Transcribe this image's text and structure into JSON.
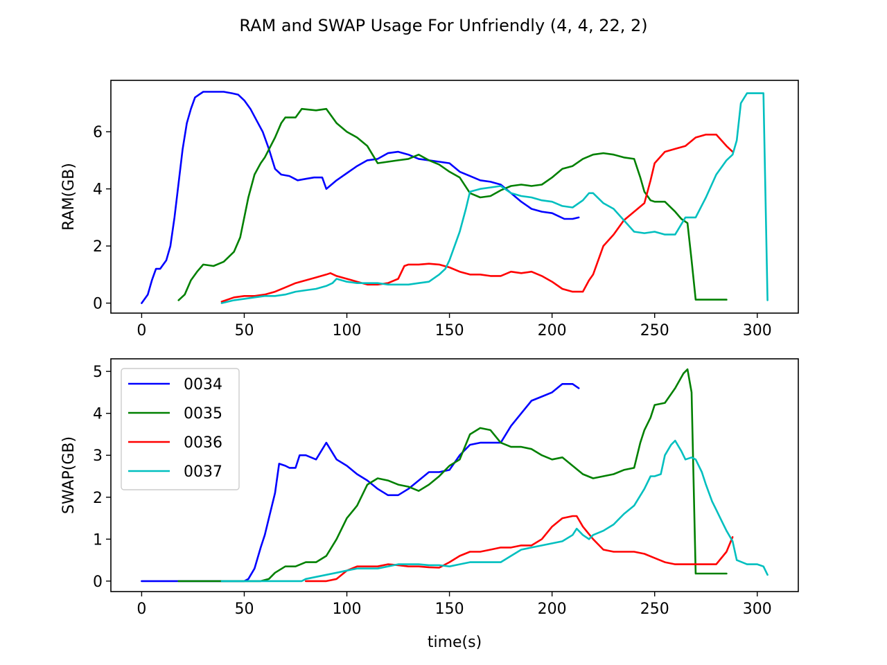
{
  "figure": {
    "title": "RAM and SWAP Usage For Unfriendly (4, 4, 22, 2)"
  },
  "chart_data": [
    {
      "type": "line",
      "ylabel": "RAM(GB)",
      "xlabel": "",
      "xlim": [
        -15,
        320
      ],
      "ylim": [
        -0.35,
        7.8
      ],
      "xticks": [
        0,
        50,
        100,
        150,
        200,
        250,
        300
      ],
      "yticks": [
        0,
        2,
        4,
        6
      ],
      "grid": false,
      "series": [
        {
          "name": "0034",
          "color": "#0000ff",
          "x": [
            0,
            3,
            5,
            7,
            9,
            12,
            14,
            16,
            18,
            20,
            22,
            24,
            26,
            28,
            30,
            35,
            40,
            44,
            47,
            50,
            53,
            56,
            59,
            62,
            65,
            68,
            72,
            76,
            80,
            84,
            88,
            90,
            95,
            100,
            105,
            110,
            115,
            120,
            125,
            130,
            135,
            140,
            145,
            150,
            155,
            160,
            165,
            170,
            175,
            180,
            185,
            190,
            195,
            200,
            203,
            206,
            210,
            213
          ],
          "y": [
            0.0,
            0.3,
            0.8,
            1.2,
            1.2,
            1.5,
            2.0,
            3.0,
            4.2,
            5.4,
            6.3,
            6.8,
            7.2,
            7.3,
            7.4,
            7.4,
            7.4,
            7.35,
            7.3,
            7.1,
            6.8,
            6.4,
            6.0,
            5.4,
            4.7,
            4.5,
            4.45,
            4.3,
            4.35,
            4.4,
            4.4,
            4.0,
            4.3,
            4.55,
            4.8,
            5.0,
            5.05,
            5.25,
            5.3,
            5.2,
            5.05,
            5.0,
            4.95,
            4.9,
            4.6,
            4.45,
            4.3,
            4.25,
            4.15,
            3.85,
            3.55,
            3.3,
            3.2,
            3.15,
            3.05,
            2.95,
            2.95,
            3.0
          ]
        },
        {
          "name": "0035",
          "color": "#008000",
          "x": [
            18,
            21,
            24,
            27,
            30,
            35,
            40,
            45,
            48,
            50,
            52,
            55,
            58,
            60,
            65,
            68,
            70,
            75,
            78,
            85,
            90,
            95,
            100,
            105,
            110,
            115,
            120,
            125,
            130,
            135,
            140,
            145,
            150,
            155,
            160,
            165,
            170,
            175,
            180,
            185,
            190,
            195,
            200,
            205,
            210,
            215,
            220,
            225,
            230,
            235,
            240,
            243,
            245,
            248,
            250,
            255,
            260,
            263,
            266,
            268,
            270,
            275,
            280,
            285
          ],
          "y": [
            0.1,
            0.3,
            0.8,
            1.1,
            1.35,
            1.3,
            1.45,
            1.8,
            2.3,
            3.0,
            3.7,
            4.5,
            4.9,
            5.1,
            5.8,
            6.3,
            6.5,
            6.5,
            6.8,
            6.75,
            6.8,
            6.3,
            6.0,
            5.8,
            5.5,
            4.9,
            4.95,
            5.0,
            5.05,
            5.2,
            5.0,
            4.85,
            4.6,
            4.4,
            3.85,
            3.7,
            3.75,
            3.95,
            4.1,
            4.15,
            4.1,
            4.15,
            4.4,
            4.7,
            4.8,
            5.05,
            5.2,
            5.25,
            5.2,
            5.1,
            5.05,
            4.4,
            3.9,
            3.6,
            3.55,
            3.55,
            3.2,
            2.95,
            2.8,
            1.5,
            0.12,
            0.12,
            0.12,
            0.12
          ]
        },
        {
          "name": "0036",
          "color": "#ff0000",
          "x": [
            39,
            45,
            50,
            55,
            60,
            65,
            70,
            75,
            80,
            85,
            90,
            92,
            95,
            100,
            105,
            110,
            115,
            120,
            125,
            128,
            130,
            135,
            140,
            145,
            150,
            155,
            160,
            165,
            170,
            175,
            180,
            185,
            190,
            195,
            200,
            205,
            210,
            215,
            218,
            220,
            225,
            230,
            235,
            240,
            245,
            248,
            250,
            255,
            260,
            265,
            270,
            275,
            280,
            285,
            288
          ],
          "y": [
            0.05,
            0.2,
            0.25,
            0.25,
            0.3,
            0.4,
            0.55,
            0.7,
            0.8,
            0.9,
            1.0,
            1.05,
            0.95,
            0.85,
            0.75,
            0.65,
            0.65,
            0.7,
            0.85,
            1.3,
            1.35,
            1.35,
            1.38,
            1.35,
            1.25,
            1.1,
            1.0,
            1.0,
            0.95,
            0.95,
            1.1,
            1.05,
            1.1,
            0.95,
            0.75,
            0.5,
            0.4,
            0.4,
            0.8,
            1.0,
            2.0,
            2.4,
            2.9,
            3.2,
            3.5,
            4.3,
            4.9,
            5.3,
            5.4,
            5.5,
            5.8,
            5.9,
            5.9,
            5.5,
            5.3
          ]
        },
        {
          "name": "0037",
          "color": "#00bfbf",
          "x": [
            39,
            45,
            50,
            55,
            60,
            65,
            70,
            75,
            80,
            85,
            90,
            93,
            95,
            100,
            105,
            110,
            115,
            120,
            125,
            130,
            135,
            140,
            145,
            148,
            150,
            155,
            158,
            160,
            165,
            170,
            175,
            180,
            185,
            190,
            195,
            200,
            205,
            210,
            215,
            218,
            220,
            225,
            230,
            235,
            240,
            245,
            250,
            255,
            260,
            265,
            270,
            275,
            280,
            285,
            288,
            290,
            292,
            295,
            300,
            303,
            305
          ],
          "y": [
            0.0,
            0.1,
            0.15,
            0.2,
            0.25,
            0.25,
            0.3,
            0.4,
            0.45,
            0.5,
            0.6,
            0.7,
            0.85,
            0.75,
            0.7,
            0.7,
            0.7,
            0.65,
            0.65,
            0.65,
            0.7,
            0.75,
            1.0,
            1.2,
            1.5,
            2.5,
            3.3,
            3.9,
            4.0,
            4.05,
            4.1,
            3.85,
            3.75,
            3.7,
            3.6,
            3.55,
            3.4,
            3.35,
            3.6,
            3.85,
            3.85,
            3.5,
            3.3,
            2.9,
            2.5,
            2.45,
            2.5,
            2.4,
            2.4,
            3.0,
            3.0,
            3.7,
            4.5,
            5.0,
            5.2,
            5.7,
            7.0,
            7.35,
            7.35,
            7.35,
            0.1
          ]
        }
      ]
    },
    {
      "type": "line",
      "ylabel": "SWAP(GB)",
      "xlabel": "time(s)",
      "xlim": [
        -15,
        320
      ],
      "ylim": [
        -0.25,
        5.3
      ],
      "xticks": [
        0,
        50,
        100,
        150,
        200,
        250,
        300
      ],
      "yticks": [
        0,
        1,
        2,
        3,
        4,
        5
      ],
      "grid": false,
      "legend": "upper-left",
      "series": [
        {
          "name": "0034",
          "color": "#0000ff",
          "x": [
            0,
            10,
            20,
            30,
            40,
            50,
            52,
            55,
            58,
            60,
            62,
            65,
            67,
            70,
            72,
            75,
            77,
            80,
            85,
            90,
            95,
            100,
            105,
            110,
            115,
            120,
            125,
            130,
            135,
            140,
            145,
            150,
            155,
            160,
            165,
            170,
            175,
            180,
            185,
            190,
            195,
            200,
            205,
            210,
            213
          ],
          "y": [
            0,
            0,
            0,
            0,
            0,
            0,
            0.05,
            0.3,
            0.8,
            1.1,
            1.5,
            2.1,
            2.8,
            2.75,
            2.7,
            2.7,
            3.0,
            3.0,
            2.9,
            3.3,
            2.9,
            2.75,
            2.55,
            2.4,
            2.2,
            2.05,
            2.05,
            2.2,
            2.4,
            2.6,
            2.6,
            2.65,
            3.0,
            3.25,
            3.3,
            3.3,
            3.3,
            3.7,
            4.0,
            4.3,
            4.4,
            4.5,
            4.7,
            4.7,
            4.6
          ]
        },
        {
          "name": "0035",
          "color": "#008000",
          "x": [
            18,
            30,
            40,
            50,
            55,
            58,
            62,
            65,
            70,
            75,
            80,
            85,
            90,
            95,
            100,
            105,
            110,
            115,
            120,
            125,
            130,
            135,
            140,
            145,
            150,
            155,
            160,
            165,
            170,
            175,
            180,
            185,
            190,
            195,
            200,
            205,
            210,
            215,
            220,
            225,
            230,
            235,
            240,
            243,
            245,
            248,
            250,
            255,
            260,
            264,
            266,
            268,
            270,
            275,
            280,
            285
          ],
          "y": [
            0,
            0,
            0,
            0,
            0,
            0,
            0.05,
            0.2,
            0.35,
            0.35,
            0.45,
            0.45,
            0.6,
            1.0,
            1.5,
            1.8,
            2.3,
            2.45,
            2.4,
            2.3,
            2.25,
            2.15,
            2.3,
            2.5,
            2.75,
            2.9,
            3.5,
            3.65,
            3.6,
            3.3,
            3.2,
            3.2,
            3.15,
            3.0,
            2.9,
            2.95,
            2.75,
            2.55,
            2.45,
            2.5,
            2.55,
            2.65,
            2.7,
            3.3,
            3.6,
            3.9,
            4.2,
            4.25,
            4.6,
            4.95,
            5.05,
            4.5,
            0.18,
            0.18,
            0.18,
            0.18
          ]
        },
        {
          "name": "0036",
          "color": "#ff0000",
          "x": [
            80,
            90,
            95,
            100,
            105,
            110,
            115,
            120,
            125,
            130,
            135,
            140,
            145,
            150,
            155,
            160,
            165,
            170,
            175,
            180,
            185,
            190,
            195,
            200,
            205,
            210,
            212,
            215,
            220,
            225,
            230,
            235,
            240,
            245,
            250,
            255,
            260,
            265,
            270,
            275,
            280,
            285,
            288
          ],
          "y": [
            0,
            0,
            0.05,
            0.25,
            0.35,
            0.35,
            0.35,
            0.4,
            0.38,
            0.35,
            0.35,
            0.33,
            0.32,
            0.45,
            0.6,
            0.7,
            0.7,
            0.75,
            0.8,
            0.8,
            0.85,
            0.85,
            1.0,
            1.3,
            1.5,
            1.55,
            1.55,
            1.3,
            1.0,
            0.75,
            0.7,
            0.7,
            0.7,
            0.65,
            0.55,
            0.45,
            0.4,
            0.4,
            0.4,
            0.4,
            0.4,
            0.7,
            1.05
          ]
        },
        {
          "name": "0037",
          "color": "#00bfbf",
          "x": [
            39,
            50,
            60,
            70,
            78,
            80,
            85,
            90,
            95,
            100,
            105,
            110,
            115,
            120,
            125,
            130,
            135,
            140,
            145,
            150,
            155,
            160,
            165,
            170,
            175,
            180,
            185,
            190,
            195,
            200,
            205,
            210,
            212,
            215,
            218,
            220,
            225,
            230,
            235,
            240,
            245,
            248,
            250,
            253,
            255,
            258,
            260,
            263,
            265,
            268,
            270,
            273,
            275,
            278,
            280,
            283,
            285,
            288,
            290,
            295,
            300,
            303,
            305
          ],
          "y": [
            0,
            0,
            0,
            0,
            0,
            0.05,
            0.1,
            0.15,
            0.2,
            0.25,
            0.3,
            0.3,
            0.3,
            0.35,
            0.4,
            0.4,
            0.4,
            0.38,
            0.38,
            0.35,
            0.4,
            0.45,
            0.45,
            0.45,
            0.45,
            0.6,
            0.75,
            0.8,
            0.85,
            0.9,
            0.95,
            1.1,
            1.25,
            1.1,
            1.0,
            1.1,
            1.2,
            1.35,
            1.6,
            1.8,
            2.2,
            2.5,
            2.5,
            2.55,
            3.0,
            3.25,
            3.35,
            3.1,
            2.9,
            2.95,
            2.9,
            2.6,
            2.3,
            1.9,
            1.7,
            1.4,
            1.2,
            0.95,
            0.5,
            0.4,
            0.4,
            0.35,
            0.15
          ]
        }
      ]
    }
  ]
}
